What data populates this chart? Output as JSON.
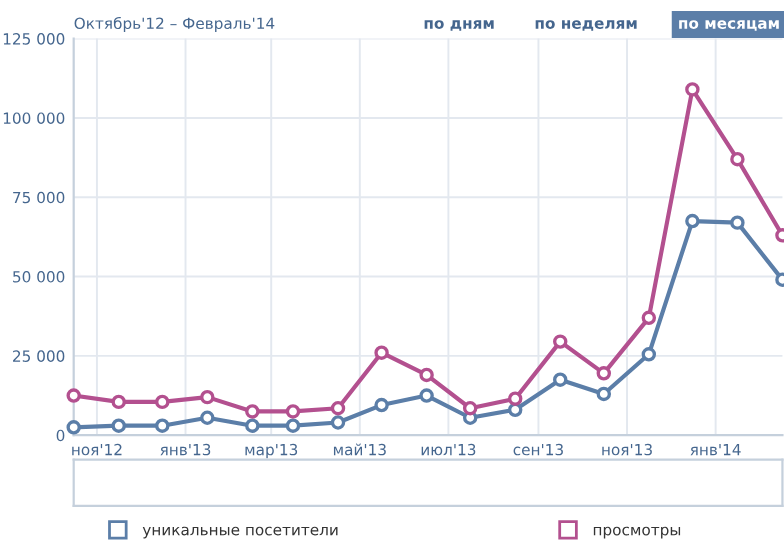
{
  "chart_data": {
    "type": "line",
    "title": "Октябрь'12 – Февраль'14",
    "annotations": [
      "по дням",
      "по неделям",
      "по месяцам"
    ],
    "x": [
      "2012-10-16",
      "2012-11-16",
      "2012-12-16",
      "2013-01-16",
      "2013-02-16",
      "2013-03-16",
      "2013-04-16",
      "2013-05-16",
      "2013-06-16",
      "2013-07-16",
      "2013-08-16",
      "2013-09-16",
      "2013-10-16",
      "2013-11-16",
      "2013-12-16",
      "2014-01-16",
      "2014-02-16"
    ],
    "series": [
      {
        "name": "уникальные посетители",
        "color": "#5b7ea8",
        "values": [
          2500,
          3000,
          3000,
          5500,
          3000,
          3000,
          4000,
          9500,
          12500,
          5500,
          8000,
          17500,
          13000,
          25500,
          67500,
          67000,
          49000
        ]
      },
      {
        "name": "просмотры",
        "color": "#b3508f",
        "values": [
          12500,
          10500,
          10500,
          12000,
          7500,
          7500,
          8500,
          26000,
          19000,
          8500,
          11500,
          29500,
          19500,
          37000,
          109000,
          87000,
          63000
        ]
      }
    ],
    "xlim": [
      "2012-10-16",
      "2014-02-16"
    ],
    "xticks": [
      {
        "value": "2012-11-01",
        "label": "ноя'12"
      },
      {
        "value": "2013-01-01",
        "label": "янв'13"
      },
      {
        "value": "2013-03-01",
        "label": "мар'13"
      },
      {
        "value": "2013-05-01",
        "label": "май'13"
      },
      {
        "value": "2013-07-01",
        "label": "июл'13"
      },
      {
        "value": "2013-09-01",
        "label": "сен'13"
      },
      {
        "value": "2013-11-01",
        "label": "ноя'13"
      },
      {
        "value": "2014-01-01",
        "label": "янв'14"
      }
    ],
    "ylim": [
      0,
      125000
    ],
    "yticks": [
      0,
      {
        "value": 25000,
        "label": "25 000"
      },
      {
        "value": 50000,
        "label": "50 000"
      },
      {
        "value": 75000,
        "label": "75 000"
      },
      {
        "value": 100000,
        "label": "100 000"
      },
      {
        "value": 125000,
        "label": "125 000"
      }
    ],
    "grid": true,
    "legend": "bottom",
    "marker": "circle",
    "line_style": "solid"
  }
}
